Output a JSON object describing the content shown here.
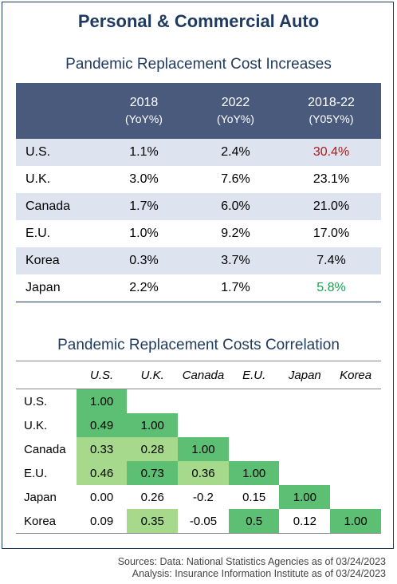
{
  "title": "Personal & Commercial Auto",
  "table1": {
    "title": "Pandemic Replacement Cost Increases",
    "columns": [
      {
        "label": "2018",
        "sub": "(YoY%)"
      },
      {
        "label": "2022",
        "sub": "(YoY%)"
      },
      {
        "label": "2018-22",
        "sub": "(Y05Y%)"
      }
    ],
    "rows": [
      {
        "country": "U.S.",
        "v2018": "1.1%",
        "v2022": "2.4%",
        "v1822": "30.4%",
        "v1822_color": "#b01818"
      },
      {
        "country": "U.K.",
        "v2018": "3.0%",
        "v2022": "7.6%",
        "v1822": "23.1%"
      },
      {
        "country": "Canada",
        "v2018": "1.7%",
        "v2022": "6.0%",
        "v1822": "21.0%"
      },
      {
        "country": "E.U.",
        "v2018": "1.0%",
        "v2022": "9.2%",
        "v1822": "17.0%"
      },
      {
        "country": "Korea",
        "v2018": "0.3%",
        "v2022": "3.7%",
        "v1822": "7.4%"
      },
      {
        "country": "Japan",
        "v2018": "2.2%",
        "v2022": "1.7%",
        "v1822": "5.8%",
        "v1822_color": "#1aa050"
      }
    ]
  },
  "table2": {
    "title": "Pandemic Replacement Costs Correlation",
    "columns": [
      "U.S.",
      "U.K.",
      "Canada",
      "E.U.",
      "Japan",
      "Korea"
    ],
    "rows": [
      {
        "label": "U.S.",
        "cells": [
          "1.00",
          "",
          "",
          "",
          "",
          ""
        ]
      },
      {
        "label": "U.K.",
        "cells": [
          "0.49",
          "1.00",
          "",
          "",
          "",
          ""
        ]
      },
      {
        "label": "Canada",
        "cells": [
          "0.33",
          "0.28",
          "1.00",
          "",
          "",
          ""
        ]
      },
      {
        "label": "E.U.",
        "cells": [
          "0.46",
          "0.73",
          "0.36",
          "1.00",
          "",
          ""
        ]
      },
      {
        "label": "Japan",
        "cells": [
          "0.00",
          "0.26",
          "-0.2",
          "0.15",
          "1.00",
          ""
        ]
      },
      {
        "label": "Korea",
        "cells": [
          "0.09",
          "0.35",
          "-0.05",
          "0.5",
          "0.12",
          "1.00"
        ]
      }
    ],
    "colors": {
      "dark_green": "#5cbf73",
      "light_green": "#a6d98c"
    }
  },
  "sources": {
    "line1": "Sources: Data: National Statistics Agencies as of 03/24/2023",
    "line2": "Analysis: Insurance Information Institute as of 03/24/2023"
  }
}
